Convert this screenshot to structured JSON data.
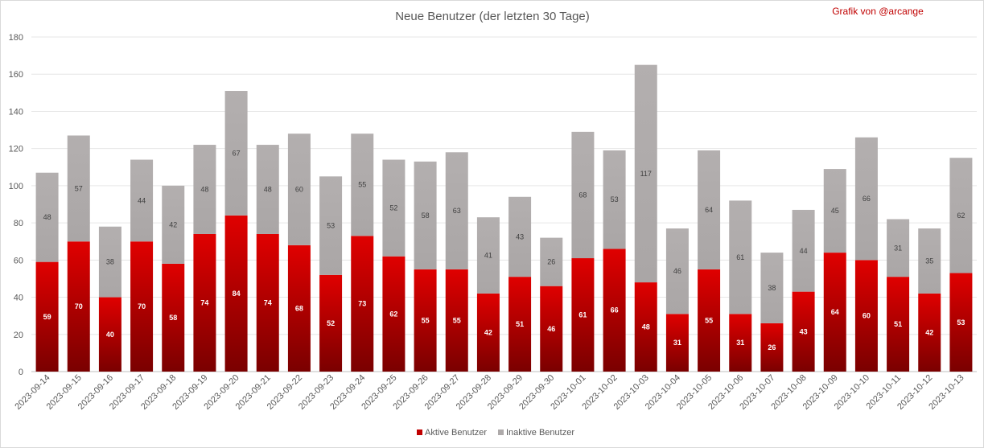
{
  "chart_data": {
    "type": "bar",
    "stacked": true,
    "title": "Neue Benutzer (der letzten 30 Tage)",
    "credit": "Grafik von @arcange",
    "ylim": [
      0,
      180
    ],
    "yticks": [
      0,
      20,
      40,
      60,
      80,
      100,
      120,
      140,
      160,
      180
    ],
    "grid": true,
    "legend_position": "bottom",
    "categories": [
      "2023-09-14",
      "2023-09-15",
      "2023-09-16",
      "2023-09-17",
      "2023-09-18",
      "2023-09-19",
      "2023-09-20",
      "2023-09-21",
      "2023-09-22",
      "2023-09-23",
      "2023-09-24",
      "2023-09-25",
      "2023-09-26",
      "2023-09-27",
      "2023-09-28",
      "2023-09-29",
      "2023-09-30",
      "2023-10-01",
      "2023-10-02",
      "2023-10-03",
      "2023-10-04",
      "2023-10-05",
      "2023-10-06",
      "2023-10-07",
      "2023-10-08",
      "2023-10-09",
      "2023-10-10",
      "2023-10-11",
      "2023-10-12",
      "2023-10-13"
    ],
    "series": [
      {
        "name": "Aktive Benutzer",
        "color": "#c00000",
        "values": [
          59,
          70,
          40,
          70,
          58,
          74,
          84,
          74,
          68,
          52,
          73,
          62,
          55,
          55,
          42,
          51,
          46,
          61,
          66,
          48,
          31,
          55,
          31,
          26,
          43,
          64,
          60,
          51,
          42,
          53
        ]
      },
      {
        "name": "Inaktive Benutzer",
        "color": "#aeaaaa",
        "values": [
          48,
          57,
          38,
          44,
          42,
          48,
          67,
          48,
          60,
          53,
          55,
          52,
          58,
          63,
          41,
          43,
          26,
          68,
          53,
          117,
          46,
          64,
          61,
          38,
          44,
          45,
          66,
          31,
          35,
          62
        ]
      }
    ]
  }
}
